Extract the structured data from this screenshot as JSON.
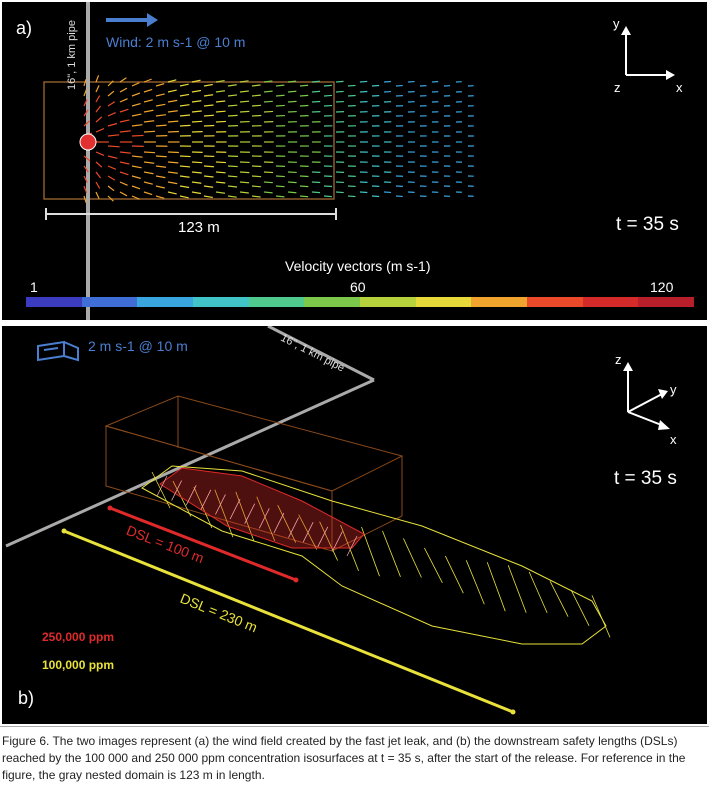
{
  "panel_a": {
    "label": "a)",
    "pipe_label": "16\", 1 km pipe",
    "wind_label": "Wind: 2 m s-1 @ 10 m",
    "axis_y": "y",
    "axis_z": "z",
    "axis_x": "x",
    "domain_length": "123 m",
    "time": "t = 35 s",
    "colorbar": {
      "title": "Velocity vectors (m s-1)",
      "tick_min": "1",
      "tick_mid": "60",
      "tick_max": "120",
      "colors": [
        "#3b3cbf",
        "#3f6fd6",
        "#3aa6e0",
        "#41c4c8",
        "#4fc98d",
        "#7cc84a",
        "#b5d13b",
        "#e6d93a",
        "#f0a42e",
        "#ea4a2a",
        "#d42a2a",
        "#b81f2a"
      ]
    }
  },
  "panel_b": {
    "label": "b)",
    "wind_label": "2 m s-1 @ 10 m",
    "pipe_label": "16\", 1 km pipe",
    "axis_z": "z",
    "axis_y": "y",
    "axis_x": "x",
    "time": "t = 35 s",
    "dsl_red": "DSL = 100 m",
    "dsl_yellow": "DSL = 230 m",
    "legend_red": "250,000 ppm",
    "legend_yellow": "100,000 ppm",
    "color_red": "#e02a2a",
    "color_yellow": "#e8e23a"
  },
  "caption": "Figure 6. The two images represent (a) the wind field created by the fast jet leak, and (b) the downstream safety lengths (DSLs) reached by the 100 000 and 250 000 ppm concentration isosurfaces at t = 35 s, after the start of the release. For reference in the figure, the gray nested domain is 123 m in length."
}
